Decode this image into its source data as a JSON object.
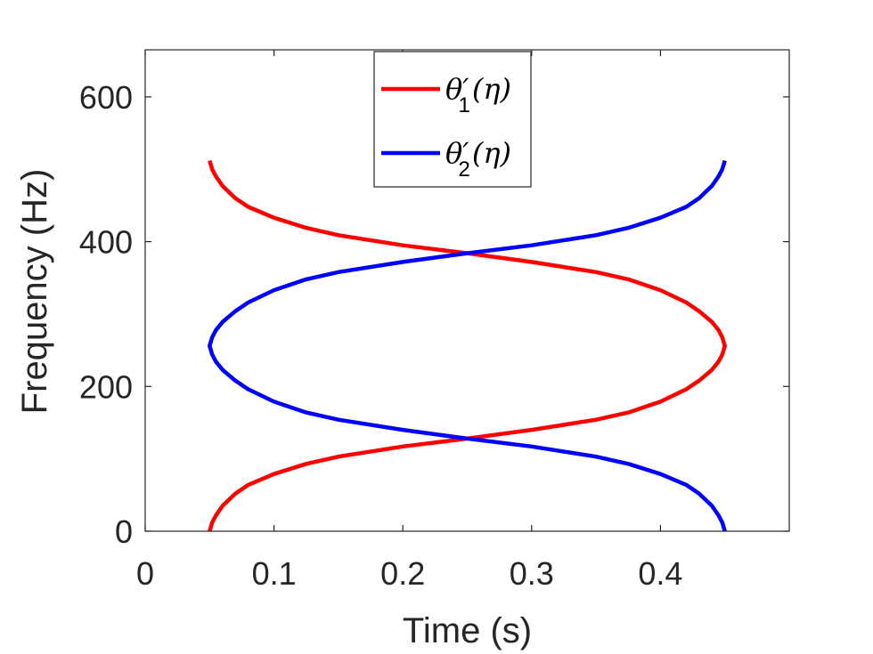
{
  "chart_data": {
    "type": "line",
    "xlabel": "Time (s)",
    "ylabel": "Frequency (Hz)",
    "xlim": [
      0,
      0.5
    ],
    "ylim": [
      0,
      665
    ],
    "xticks": [
      0,
      0.1,
      0.2,
      0.3,
      0.4
    ],
    "xtick_labels": [
      "0",
      "0.1",
      "0.2",
      "0.3",
      "0.4"
    ],
    "yticks": [
      0,
      200,
      400,
      600
    ],
    "ytick_labels": [
      "0",
      "200",
      "400",
      "600"
    ],
    "grid": false,
    "legend_position": "top-center",
    "series": [
      {
        "name": "θ′1(η)",
        "legend_main": "θ′",
        "legend_sub": "1",
        "legend_arg": "(η)",
        "color": "#ff0000",
        "x": [
          0.05,
          0.052,
          0.055,
          0.06,
          0.07,
          0.08,
          0.1,
          0.125,
          0.15,
          0.2,
          0.25,
          0.3,
          0.35,
          0.375,
          0.4,
          0.42,
          0.43,
          0.44,
          0.445,
          0.448,
          0.45,
          0.448,
          0.445,
          0.44,
          0.43,
          0.42,
          0.4,
          0.375,
          0.35,
          0.3,
          0.25,
          0.2,
          0.15,
          0.125,
          0.1,
          0.08,
          0.07,
          0.06,
          0.055,
          0.052,
          0.05
        ],
        "y": [
          0,
          12,
          22,
          35,
          52,
          64,
          79,
          93,
          103,
          117,
          128,
          140,
          154,
          164,
          179,
          196,
          208,
          223,
          234,
          244,
          256,
          268,
          278,
          289,
          304,
          316,
          333,
          348,
          358,
          372,
          384,
          395,
          409,
          419,
          433,
          448,
          460,
          477,
          490,
          500,
          512
        ]
      },
      {
        "name": "θ′2(η)",
        "legend_main": "θ′",
        "legend_sub": "2",
        "legend_arg": "(η)",
        "color": "#0000ff",
        "x": [
          0.45,
          0.448,
          0.445,
          0.44,
          0.43,
          0.42,
          0.4,
          0.375,
          0.35,
          0.3,
          0.25,
          0.2,
          0.15,
          0.125,
          0.1,
          0.08,
          0.07,
          0.06,
          0.055,
          0.052,
          0.05,
          0.052,
          0.055,
          0.06,
          0.07,
          0.08,
          0.1,
          0.125,
          0.15,
          0.2,
          0.25,
          0.3,
          0.35,
          0.375,
          0.4,
          0.42,
          0.43,
          0.44,
          0.445,
          0.448,
          0.45
        ],
        "y": [
          0,
          12,
          22,
          35,
          52,
          64,
          79,
          93,
          103,
          117,
          128,
          140,
          154,
          164,
          179,
          196,
          208,
          223,
          234,
          244,
          256,
          268,
          278,
          289,
          304,
          316,
          333,
          348,
          358,
          372,
          384,
          395,
          409,
          419,
          433,
          448,
          460,
          477,
          490,
          500,
          512
        ]
      }
    ]
  }
}
